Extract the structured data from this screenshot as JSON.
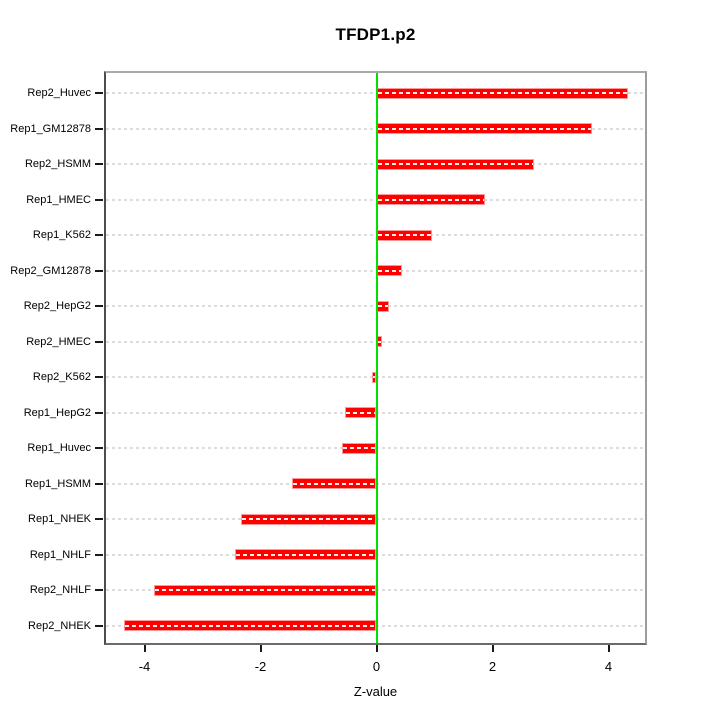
{
  "figure": {
    "title": "TFDP1.p2",
    "xlabel": "Z-value"
  },
  "chart_data": {
    "type": "bar",
    "orientation": "horizontal",
    "title": "TFDP1.p2",
    "xlabel": "Z-value",
    "ylabel": "",
    "categories": [
      "Rep2_Huvec",
      "Rep1_GM12878",
      "Rep2_HSMM",
      "Rep1_HMEC",
      "Rep1_K562",
      "Rep2_GM12878",
      "Rep2_HepG2",
      "Rep2_HMEC",
      "Rep2_K562",
      "Rep1_HepG2",
      "Rep1_Huvec",
      "Rep1_HSMM",
      "Rep1_NHEK",
      "Rep1_NHLF",
      "Rep2_NHLF",
      "Rep2_NHEK"
    ],
    "values": [
      4.33,
      3.72,
      2.72,
      1.87,
      0.95,
      0.44,
      0.21,
      0.09,
      -0.08,
      -0.55,
      -0.59,
      -1.45,
      -2.34,
      -2.44,
      -3.83,
      -4.35
    ],
    "x_ticks": [
      "-4",
      "-2",
      "0",
      "2",
      "4"
    ],
    "x_tick_values": [
      -4,
      -2,
      0,
      2,
      4
    ],
    "xlim": [
      -4.7,
      4.65
    ],
    "zero_reference_line": 0,
    "grid": "horizontal-dashed",
    "legend": "none",
    "colors": {
      "bar": "#FF0000",
      "bar_edge": "#FF9999",
      "bar_center_dash": "#FFFFFF",
      "zero_line": "#00E100",
      "gridline": "#DCDCDC",
      "plot_border": "#9C9C9C",
      "text": "#000000",
      "background": "#FFFFFF"
    }
  }
}
